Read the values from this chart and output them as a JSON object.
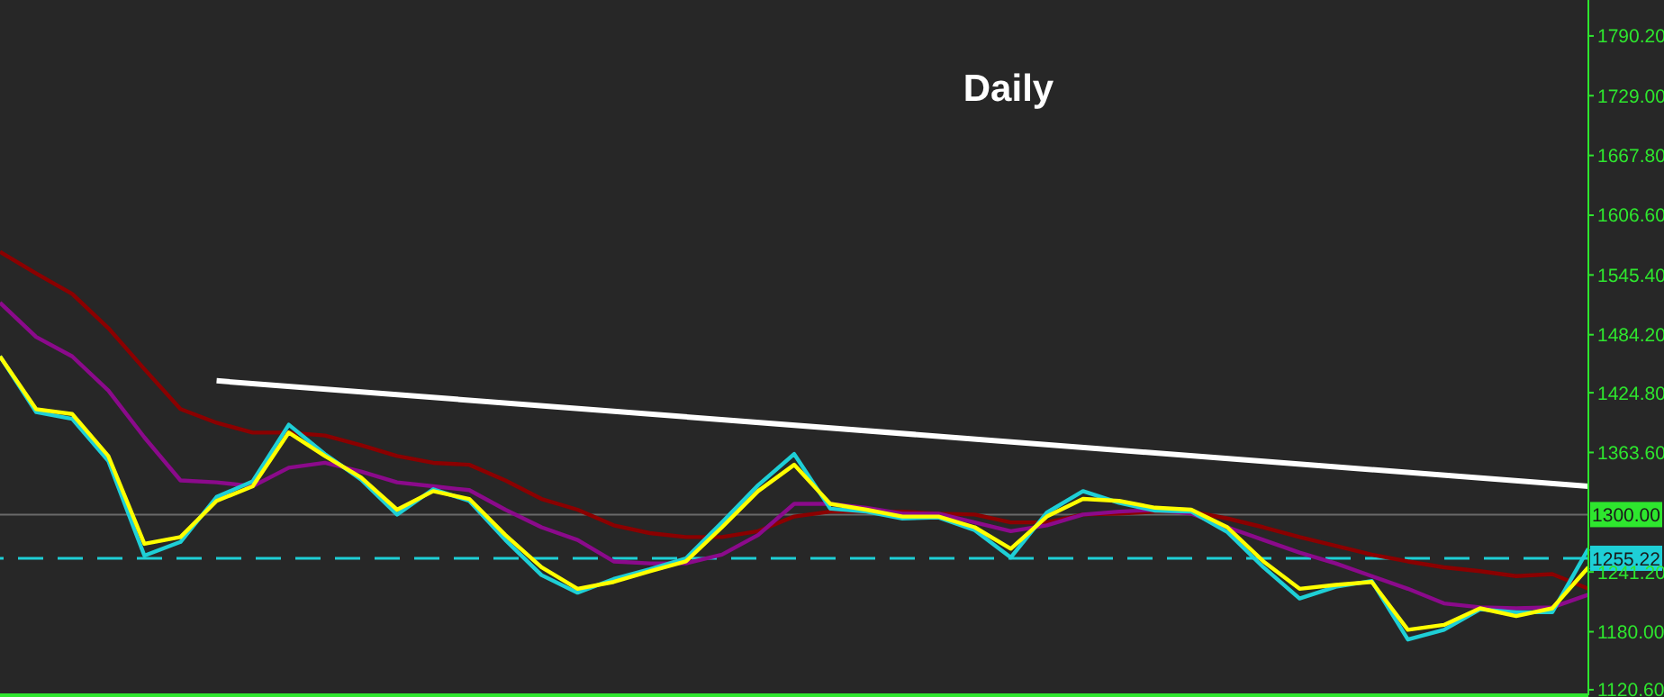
{
  "chart_data": {
    "type": "line",
    "title": "Daily",
    "categories": [
      null,
      null,
      null,
      null,
      null,
      null,
      null,
      null,
      null,
      null,
      null,
      null,
      null,
      null,
      null,
      null,
      null,
      null,
      null,
      null,
      null,
      null,
      null,
      null,
      null,
      null,
      null,
      null,
      null,
      null,
      null,
      null,
      null,
      null,
      null,
      null,
      null,
      null,
      null,
      null,
      null,
      null,
      null,
      null,
      null
    ],
    "series": [
      {
        "color": "#8b0000",
        "values": [
          1569,
          1547,
          1526,
          1491,
          1449,
          1408,
          1394,
          1384,
          1384,
          1381,
          1371,
          1360,
          1353,
          1351,
          1335,
          1316,
          1305,
          1289,
          1281,
          1277,
          1277,
          1283,
          1298,
          1303,
          1303,
          1303,
          1301,
          1300,
          1292,
          1292,
          1300,
          1301,
          1303,
          1303,
          1296,
          1287,
          1277,
          1268,
          1259,
          1252,
          1246,
          1242,
          1237,
          1239,
          1224
        ]
      },
      {
        "color": "#8b0a8b",
        "values": [
          1517,
          1482,
          1462,
          1427,
          1379,
          1335,
          1333,
          1329,
          1348,
          1353,
          1344,
          1333,
          1329,
          1325,
          1305,
          1287,
          1274,
          1252,
          1250,
          1250,
          1259,
          1279,
          1311,
          1311,
          1307,
          1301,
          1301,
          1292,
          1283,
          1289,
          1300,
          1303,
          1305,
          1301,
          1287,
          1274,
          1261,
          1250,
          1237,
          1224,
          1209,
          1205,
          1204,
          1205,
          1218
        ]
      },
      {
        "color": "#1ecfd6",
        "values": [
          1462,
          1405,
          1398,
          1355,
          1258,
          1272,
          1318,
          1334,
          1392,
          1362,
          1336,
          1300,
          1326,
          1314,
          1274,
          1238,
          1220,
          1234,
          1244,
          1255,
          1292,
          1330,
          1362,
          1306,
          1303,
          1296,
          1297,
          1284,
          1256,
          1302,
          1324,
          1312,
          1304,
          1303,
          1282,
          1246,
          1214,
          1226,
          1232,
          1172,
          1182,
          1203,
          1200,
          1200,
          1265
        ]
      },
      {
        "color": "#ffff00",
        "values": [
          1462,
          1408,
          1403,
          1360,
          1270,
          1277,
          1314,
          1329,
          1384,
          1360,
          1338,
          1305,
          1324,
          1316,
          1279,
          1246,
          1224,
          1231,
          1242,
          1252,
          1287,
          1324,
          1351,
          1311,
          1305,
          1298,
          1298,
          1287,
          1265,
          1298,
          1316,
          1314,
          1307,
          1305,
          1287,
          1252,
          1224,
          1228,
          1231,
          1182,
          1187,
          1204,
          1196,
          1204,
          1246
        ]
      },
      {
        "color": "#ffffff",
        "values": [
          null,
          null,
          null,
          null,
          null,
          null,
          1437,
          null,
          null,
          null,
          null,
          null,
          null,
          null,
          null,
          null,
          null,
          null,
          null,
          null,
          null,
          null,
          null,
          null,
          null,
          null,
          null,
          null,
          null,
          null,
          null,
          null,
          null,
          null,
          null,
          null,
          null,
          null,
          null,
          null,
          null,
          null,
          null,
          null,
          1329
        ]
      }
    ],
    "ylim": [
      1115,
      1827
    ],
    "yticks": [
      {
        "value": 1120.6,
        "label": "1120.60"
      },
      {
        "value": 1180,
        "label": "1180.00"
      },
      {
        "value": 1241.2,
        "label": "1241.20"
      },
      {
        "value": 1363.6,
        "label": "1363.60"
      },
      {
        "value": 1424.8,
        "label": "1424.80"
      },
      {
        "value": 1484.2,
        "label": "1484.20"
      },
      {
        "value": 1545.4,
        "label": "1545.40"
      },
      {
        "value": 1606.6,
        "label": "1606.60"
      },
      {
        "value": 1667.8,
        "label": "1667.80"
      },
      {
        "value": 1729,
        "label": "1729.00"
      },
      {
        "value": 1790.2,
        "label": "1790.20"
      }
    ],
    "ref_lines": [
      {
        "axis": "y",
        "value": 1300,
        "label": "1300.00",
        "color": "#6a6a6a",
        "line_style": "solid"
      },
      {
        "axis": "y",
        "value": 1255.22,
        "label": "1255.22",
        "color": "#1ecfd6",
        "line_style": "dashed"
      }
    ],
    "marker": "none",
    "line_style": "solid",
    "tick_labels": "y"
  }
}
